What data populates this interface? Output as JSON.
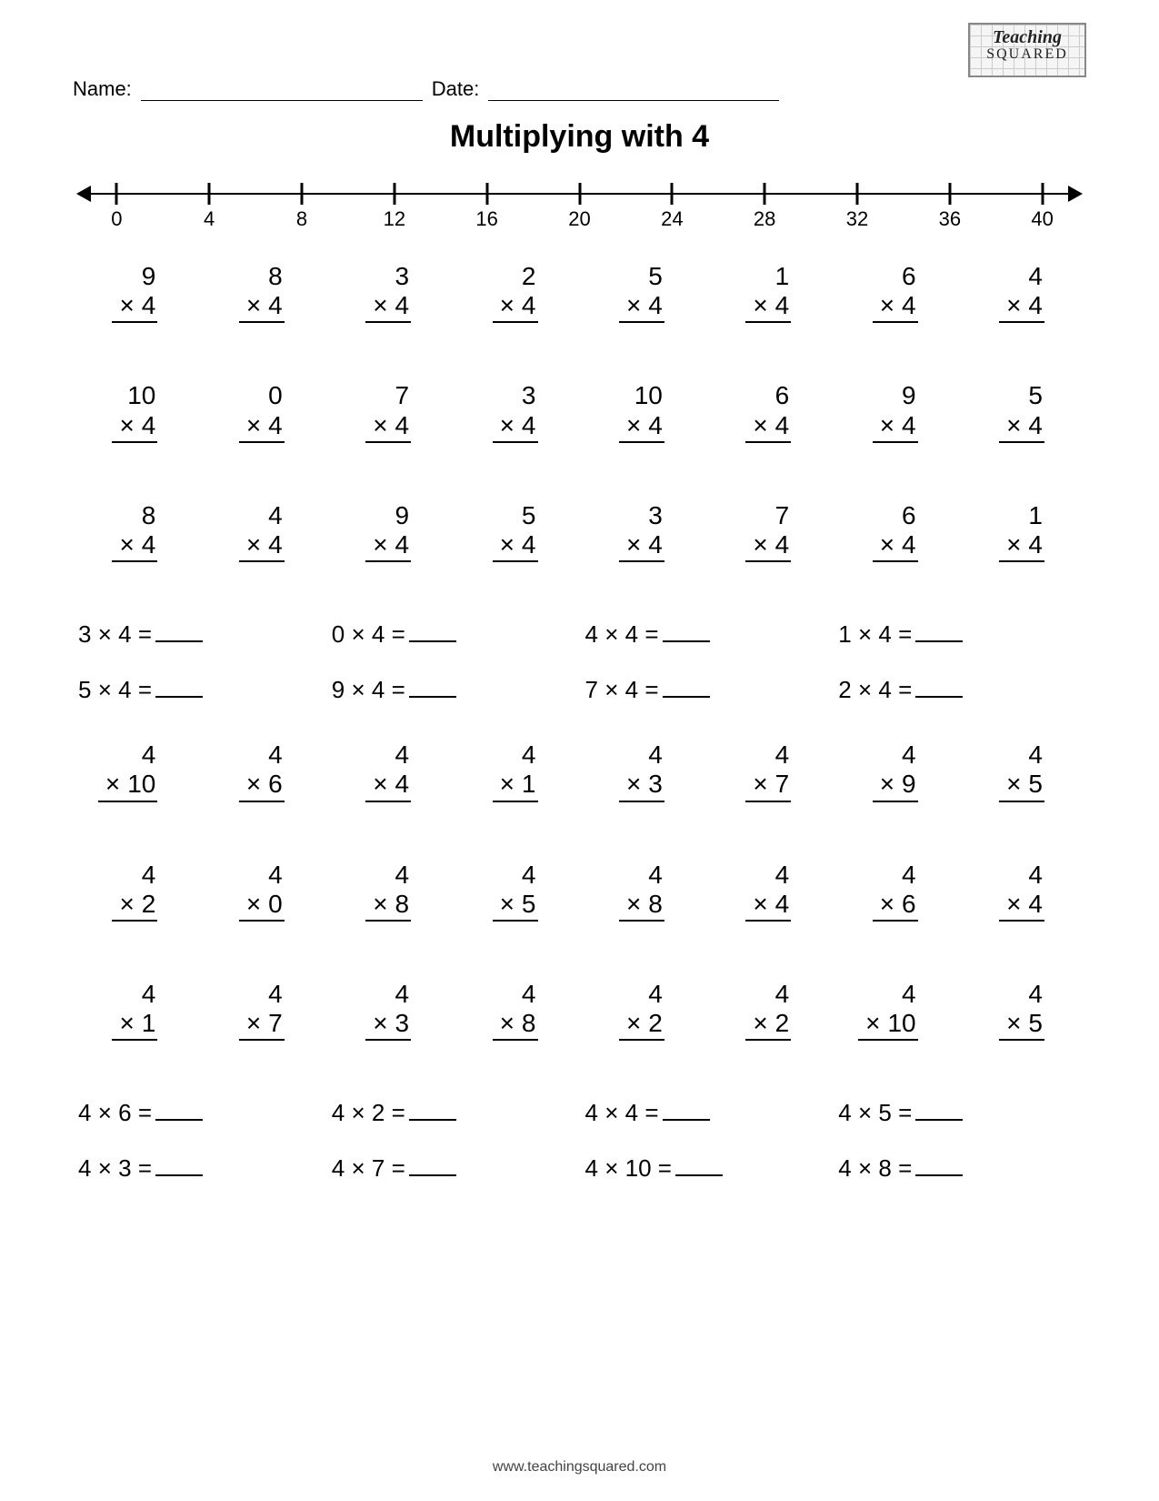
{
  "header": {
    "name_label": "Name:",
    "date_label": "Date:",
    "logo_line1": "Teaching",
    "logo_line2": "SQUARED"
  },
  "title": "Multiplying with 4",
  "numberline": {
    "ticks": [
      0,
      4,
      8,
      12,
      16,
      20,
      24,
      28,
      32,
      36,
      40
    ],
    "min": 0,
    "max": 40,
    "pad_pct": 3.5
  },
  "symbols": {
    "times": "×",
    "equals": "="
  },
  "vertical_block1": [
    [
      {
        "a": 9,
        "b": 4
      },
      {
        "a": 8,
        "b": 4
      },
      {
        "a": 3,
        "b": 4
      },
      {
        "a": 2,
        "b": 4
      },
      {
        "a": 5,
        "b": 4
      },
      {
        "a": 1,
        "b": 4
      },
      {
        "a": 6,
        "b": 4
      },
      {
        "a": 4,
        "b": 4
      }
    ],
    [
      {
        "a": 10,
        "b": 4
      },
      {
        "a": 0,
        "b": 4
      },
      {
        "a": 7,
        "b": 4
      },
      {
        "a": 3,
        "b": 4
      },
      {
        "a": 10,
        "b": 4
      },
      {
        "a": 6,
        "b": 4
      },
      {
        "a": 9,
        "b": 4
      },
      {
        "a": 5,
        "b": 4
      }
    ],
    [
      {
        "a": 8,
        "b": 4
      },
      {
        "a": 4,
        "b": 4
      },
      {
        "a": 9,
        "b": 4
      },
      {
        "a": 5,
        "b": 4
      },
      {
        "a": 3,
        "b": 4
      },
      {
        "a": 7,
        "b": 4
      },
      {
        "a": 6,
        "b": 4
      },
      {
        "a": 1,
        "b": 4
      }
    ]
  ],
  "horizontal_block1": [
    [
      {
        "a": 3,
        "b": 4
      },
      {
        "a": 0,
        "b": 4
      },
      {
        "a": 4,
        "b": 4
      },
      {
        "a": 1,
        "b": 4
      }
    ],
    [
      {
        "a": 5,
        "b": 4
      },
      {
        "a": 9,
        "b": 4
      },
      {
        "a": 7,
        "b": 4
      },
      {
        "a": 2,
        "b": 4
      }
    ]
  ],
  "vertical_block2": [
    [
      {
        "a": 4,
        "b": 10
      },
      {
        "a": 4,
        "b": 6
      },
      {
        "a": 4,
        "b": 4
      },
      {
        "a": 4,
        "b": 1
      },
      {
        "a": 4,
        "b": 3
      },
      {
        "a": 4,
        "b": 7
      },
      {
        "a": 4,
        "b": 9
      },
      {
        "a": 4,
        "b": 5
      }
    ],
    [
      {
        "a": 4,
        "b": 2
      },
      {
        "a": 4,
        "b": 0
      },
      {
        "a": 4,
        "b": 8
      },
      {
        "a": 4,
        "b": 5
      },
      {
        "a": 4,
        "b": 8
      },
      {
        "a": 4,
        "b": 4
      },
      {
        "a": 4,
        "b": 6
      },
      {
        "a": 4,
        "b": 4
      }
    ],
    [
      {
        "a": 4,
        "b": 1
      },
      {
        "a": 4,
        "b": 7
      },
      {
        "a": 4,
        "b": 3
      },
      {
        "a": 4,
        "b": 8
      },
      {
        "a": 4,
        "b": 2
      },
      {
        "a": 4,
        "b": 2
      },
      {
        "a": 4,
        "b": 10
      },
      {
        "a": 4,
        "b": 5
      }
    ]
  ],
  "horizontal_block2": [
    [
      {
        "a": 4,
        "b": 6
      },
      {
        "a": 4,
        "b": 2
      },
      {
        "a": 4,
        "b": 4
      },
      {
        "a": 4,
        "b": 5
      }
    ],
    [
      {
        "a": 4,
        "b": 3
      },
      {
        "a": 4,
        "b": 7
      },
      {
        "a": 4,
        "b": 10
      },
      {
        "a": 4,
        "b": 8
      }
    ]
  ],
  "footer": "www.teachingsquared.com"
}
